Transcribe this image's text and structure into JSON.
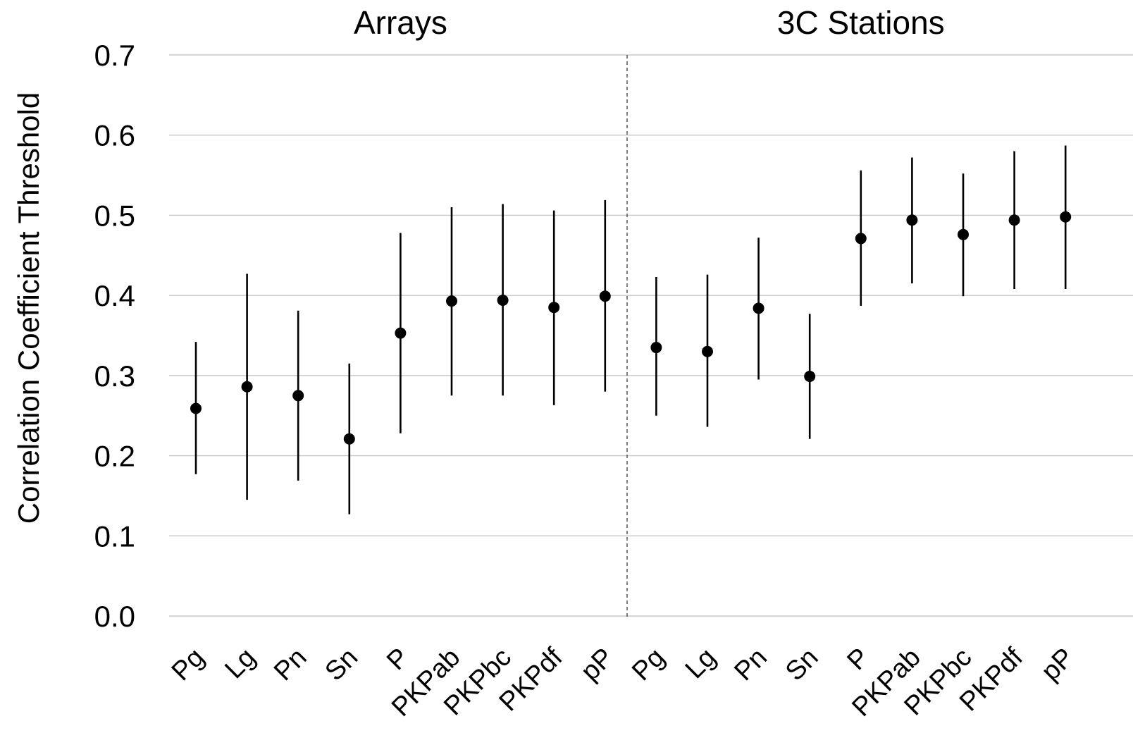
{
  "chart_data": {
    "type": "scatter",
    "ylabel": "Correlation Coefficient Threshold",
    "ylim": [
      0.0,
      0.7
    ],
    "yticks": [
      "0.0",
      "0.1",
      "0.2",
      "0.3",
      "0.4",
      "0.5",
      "0.6",
      "0.7"
    ],
    "grid": true,
    "panels": [
      {
        "title": "Arrays",
        "categories": [
          "Pg",
          "Lg",
          "Pn",
          "Sn",
          "P",
          "PKPab",
          "PKPbc",
          "PKPdf",
          "pP"
        ],
        "values": [
          0.259,
          0.286,
          0.275,
          0.221,
          0.353,
          0.393,
          0.394,
          0.385,
          0.399
        ],
        "lower": [
          0.177,
          0.145,
          0.169,
          0.127,
          0.228,
          0.275,
          0.275,
          0.263,
          0.28
        ],
        "upper": [
          0.342,
          0.427,
          0.381,
          0.315,
          0.478,
          0.51,
          0.514,
          0.506,
          0.519
        ]
      },
      {
        "title": "3C Stations",
        "categories": [
          "Pg",
          "Lg",
          "Pn",
          "Sn",
          "P",
          "PKPab",
          "PKPbc",
          "PKPdf",
          "pP"
        ],
        "values": [
          0.335,
          0.33,
          0.384,
          0.299,
          0.471,
          0.494,
          0.476,
          0.494,
          0.498
        ],
        "lower": [
          0.25,
          0.236,
          0.295,
          0.221,
          0.387,
          0.415,
          0.399,
          0.408,
          0.408
        ],
        "upper": [
          0.423,
          0.426,
          0.472,
          0.377,
          0.556,
          0.572,
          0.552,
          0.58,
          0.587
        ]
      }
    ]
  }
}
